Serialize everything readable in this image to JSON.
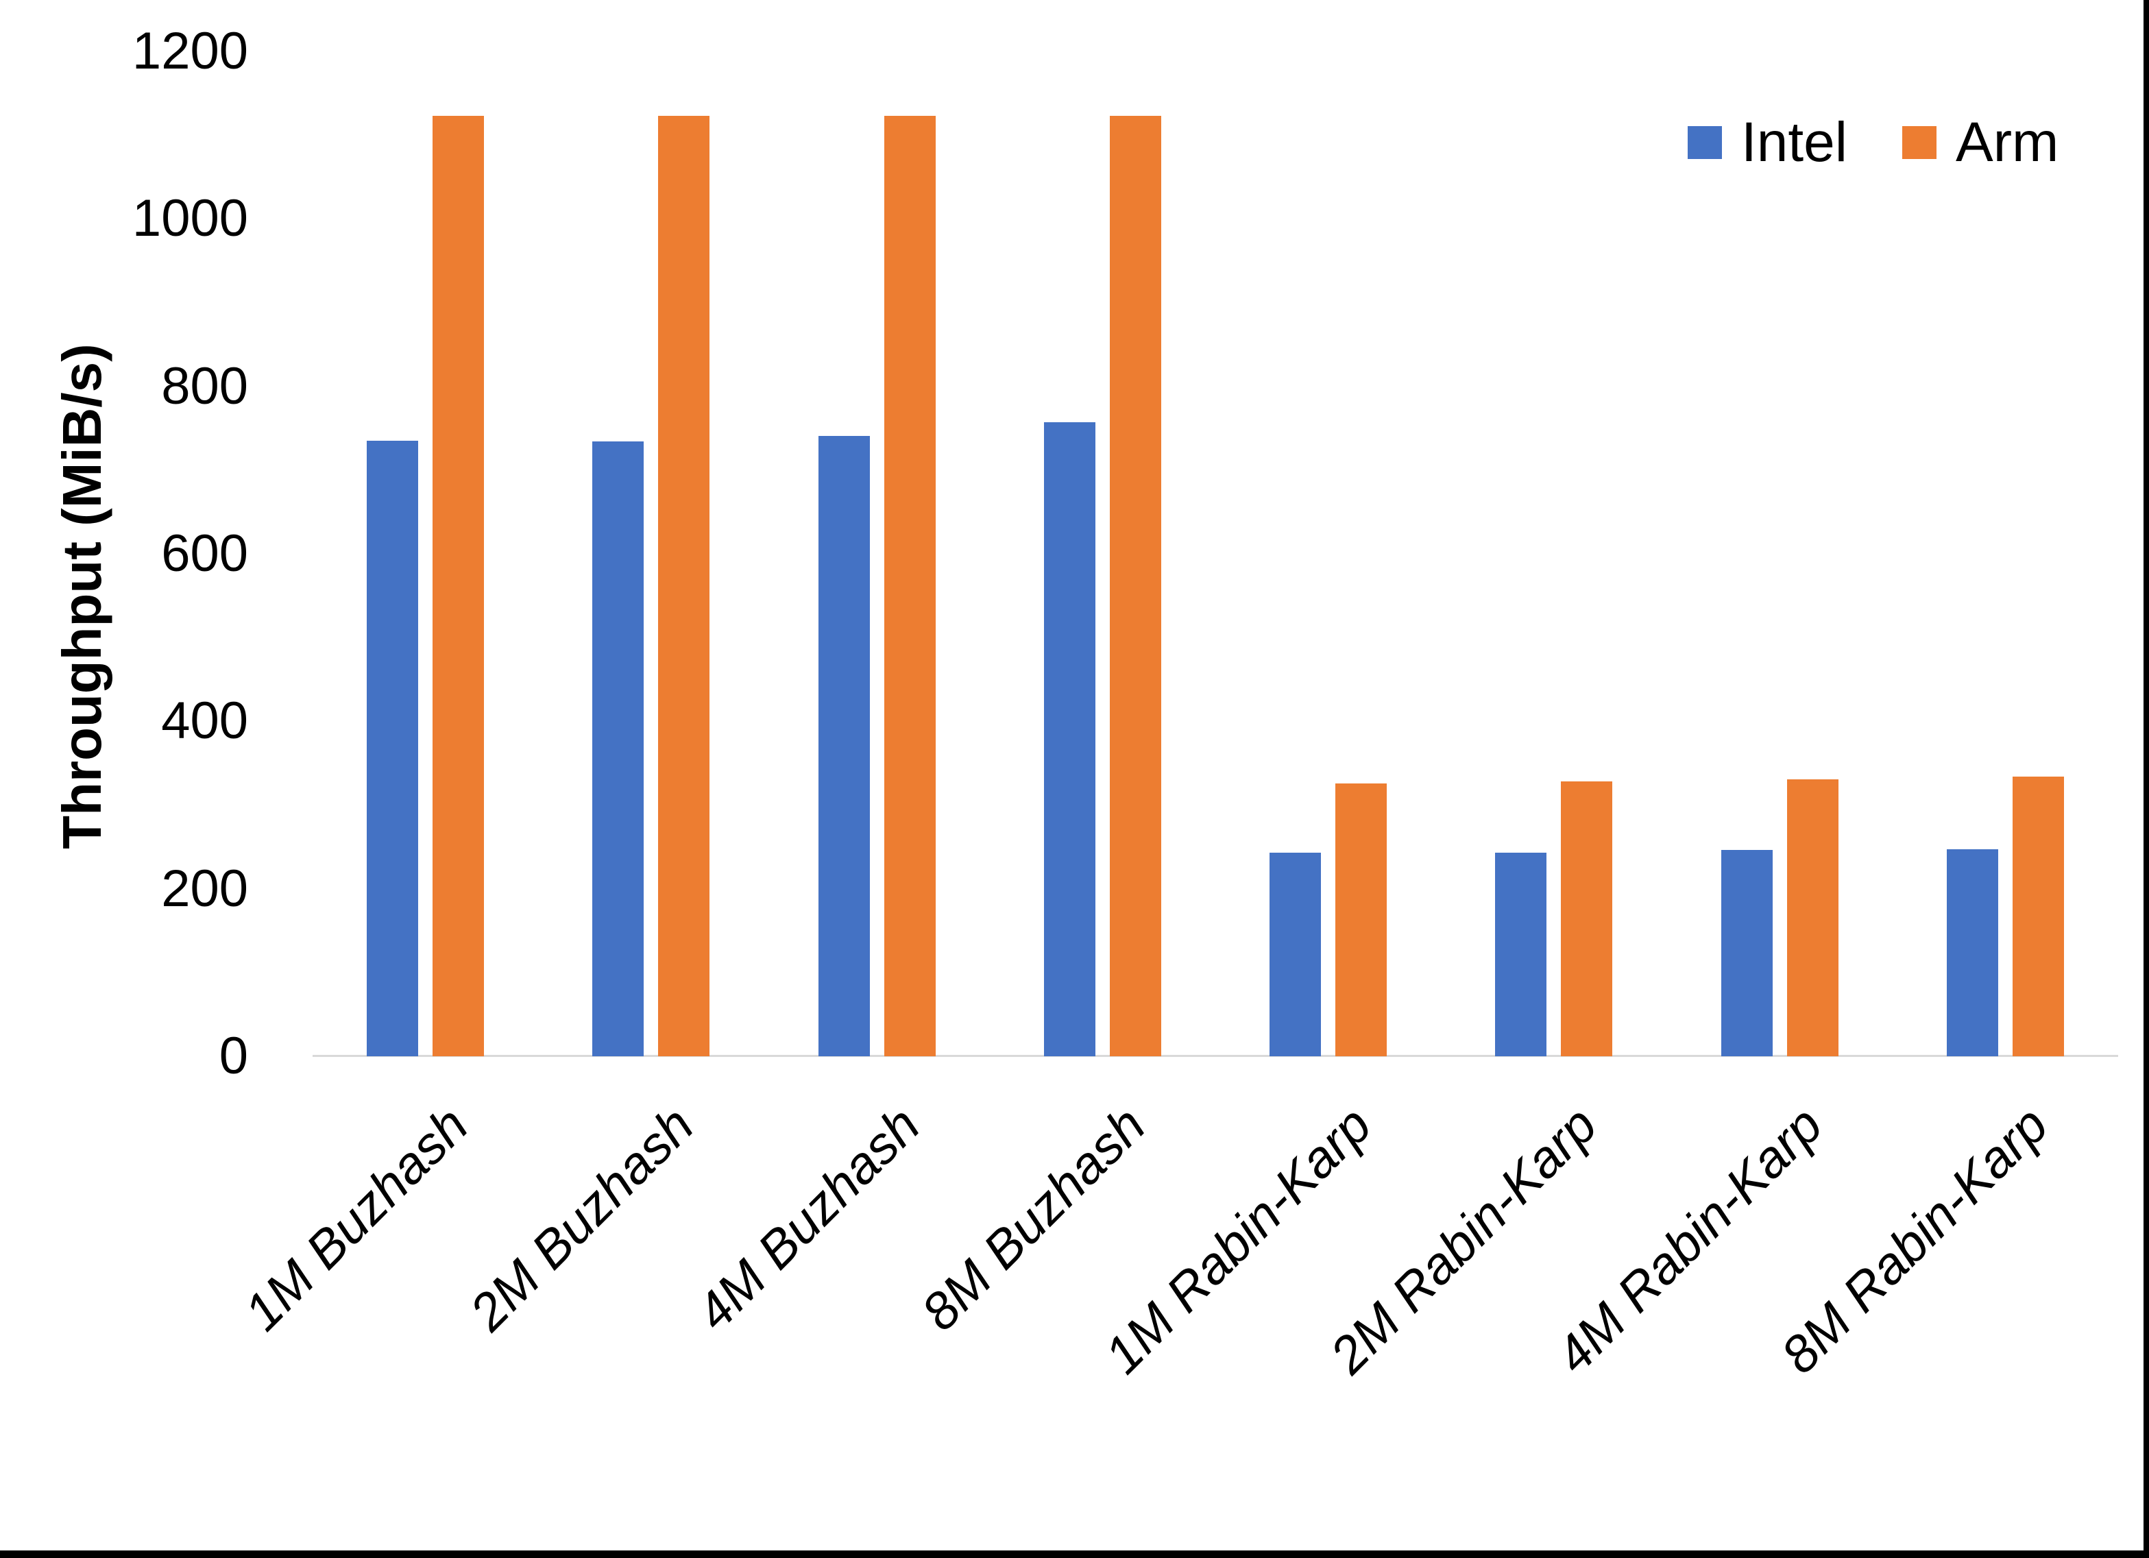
{
  "chart_data": {
    "type": "bar",
    "title": "",
    "xlabel": "",
    "ylabel": "Throughput (MiB/s)",
    "ylim": [
      0,
      1200
    ],
    "ytick_step": 200,
    "grid": "off",
    "legend_position": "top-right",
    "categories": [
      "1M Buzhash",
      "2M Buzhash",
      "4M Buzhash",
      "8M Buzhash",
      "1M Rabin-Karp",
      "2M Rabin-Karp",
      "4M Rabin-Karp",
      "8M Rabin-Karp"
    ],
    "series": [
      {
        "name": "Intel",
        "color": "#4472C4",
        "values": [
          735,
          734,
          741,
          757,
          243,
          243,
          246,
          247
        ]
      },
      {
        "name": "Arm",
        "color": "#ED7D31",
        "values": [
          1123,
          1123,
          1123,
          1123,
          326,
          328,
          331,
          334
        ]
      }
    ]
  },
  "colors": {
    "axis_line": "#D9D9D9",
    "text": "#000000",
    "background": "#FFFFFF",
    "frame_edge": "#000000"
  }
}
